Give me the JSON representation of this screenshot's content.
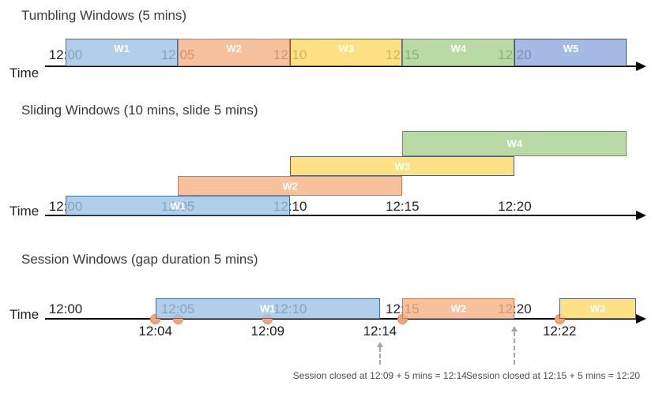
{
  "page": {
    "background": "#FFFFFF"
  },
  "time_axis": {
    "label": "Time",
    "ticks": [
      {
        "label": "12:00",
        "min": 0
      },
      {
        "label": "12:05",
        "min": 5
      },
      {
        "label": "12:10",
        "min": 10
      },
      {
        "label": "12:15",
        "min": 15
      },
      {
        "label": "12:20",
        "min": 20
      }
    ]
  },
  "palette": {
    "blue": {
      "fill": "#9DC3E6",
      "border": "#41719C"
    },
    "orange": {
      "fill": "#F4B183",
      "border": "#C87C4D"
    },
    "yellow": {
      "fill": "#FFD966",
      "border": "#54616E"
    },
    "green": {
      "fill": "#A9D18E",
      "border": "#70906B"
    },
    "navy": {
      "fill": "#8FAADC",
      "border": "#2F5496"
    },
    "event_dot": {
      "fill": "#F2A37C",
      "border": "#DE8E66"
    },
    "annotation_arrow": "#A6A6A6"
  },
  "sections": [
    {
      "id": "tumbling",
      "title": "Tumbling Windows (5 mins)",
      "windows": [
        {
          "label": "W1",
          "color": "blue",
          "start_min": 0,
          "end_min": 5
        },
        {
          "label": "W2",
          "color": "orange",
          "start_min": 5,
          "end_min": 10
        },
        {
          "label": "W3",
          "color": "yellow",
          "start_min": 10,
          "end_min": 15
        },
        {
          "label": "W4",
          "color": "green",
          "start_min": 15,
          "end_min": 20
        },
        {
          "label": "W5",
          "color": "navy",
          "start_min": 20,
          "end_min": 25
        }
      ]
    },
    {
      "id": "sliding",
      "title": "Sliding Windows (10 mins, slide 5 mins)",
      "windows": [
        {
          "label": "W1",
          "color": "blue",
          "start_min": 0,
          "end_min": 10,
          "row": 0
        },
        {
          "label": "W2",
          "color": "orange",
          "start_min": 5,
          "end_min": 15,
          "row": 1
        },
        {
          "label": "W3",
          "color": "yellow",
          "start_min": 10,
          "end_min": 20,
          "row": 2
        },
        {
          "label": "W4",
          "color": "green",
          "start_min": 15,
          "end_min": 25,
          "row": 3
        }
      ]
    },
    {
      "id": "session",
      "title": "Session Windows (gap duration 5 mins)",
      "windows": [
        {
          "label": "W1",
          "color": "blue",
          "start_min": 4,
          "end_min": 14
        },
        {
          "label": "W2",
          "color": "orange",
          "start_min": 15,
          "end_min": 20
        },
        {
          "label": "W3",
          "color": "yellow",
          "start_min": 22,
          "end_min": 25.4
        }
      ],
      "events": [
        {
          "min": 4,
          "label": "12:04"
        },
        {
          "min": 5,
          "label": ""
        },
        {
          "min": 9,
          "label": "12:09"
        },
        {
          "min": 15,
          "label": ""
        },
        {
          "min": 22,
          "label": "12:22"
        }
      ],
      "close_markers": [
        {
          "min": 14,
          "label": "12:14"
        }
      ],
      "annotations": [
        {
          "text": "Session closed at 12:09 + 5 mins = 12:14",
          "arrow_min": 14
        },
        {
          "text": "Session closed at 12:15 + 5 mins = 12:20",
          "arrow_min": 20
        }
      ]
    }
  ]
}
